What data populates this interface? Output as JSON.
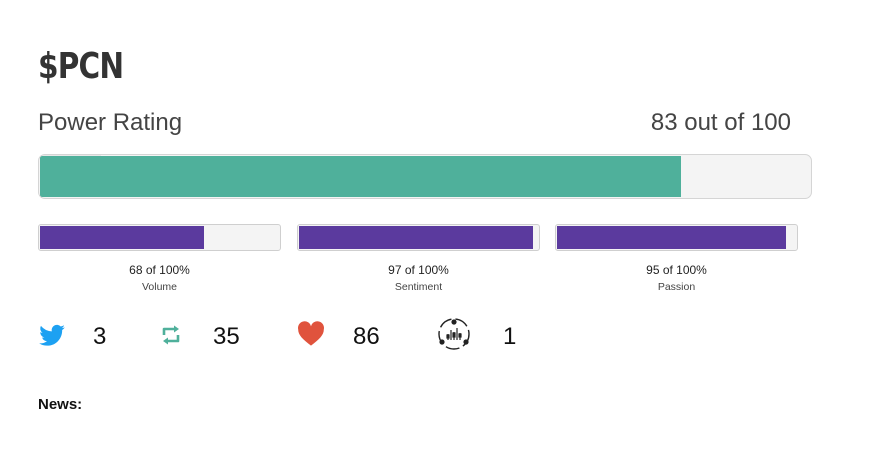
{
  "ticker": "$PCN",
  "power_rating": {
    "label": "Power Rating",
    "value_text": "83 out of 100",
    "value": 83,
    "max": 100,
    "color": "#4fb09b"
  },
  "metrics": [
    {
      "value_text": "68 of 100%",
      "label": "Volume",
      "value": 68
    },
    {
      "value_text": "97 of 100%",
      "label": "Sentiment",
      "value": 97
    },
    {
      "value_text": "95 of 100%",
      "label": "Passion",
      "value": 95
    }
  ],
  "metric_color": "#5b3a9e",
  "stats": [
    {
      "icon": "twitter-bird-icon",
      "count": "3",
      "color": "#1da1f2"
    },
    {
      "icon": "retweet-icon",
      "count": "35",
      "color": "#4fb09b"
    },
    {
      "icon": "heart-icon",
      "count": "86",
      "color": "#e0533d"
    },
    {
      "icon": "community-network-icon",
      "count": "1",
      "color": "#222222"
    }
  ],
  "news_label": "News:"
}
